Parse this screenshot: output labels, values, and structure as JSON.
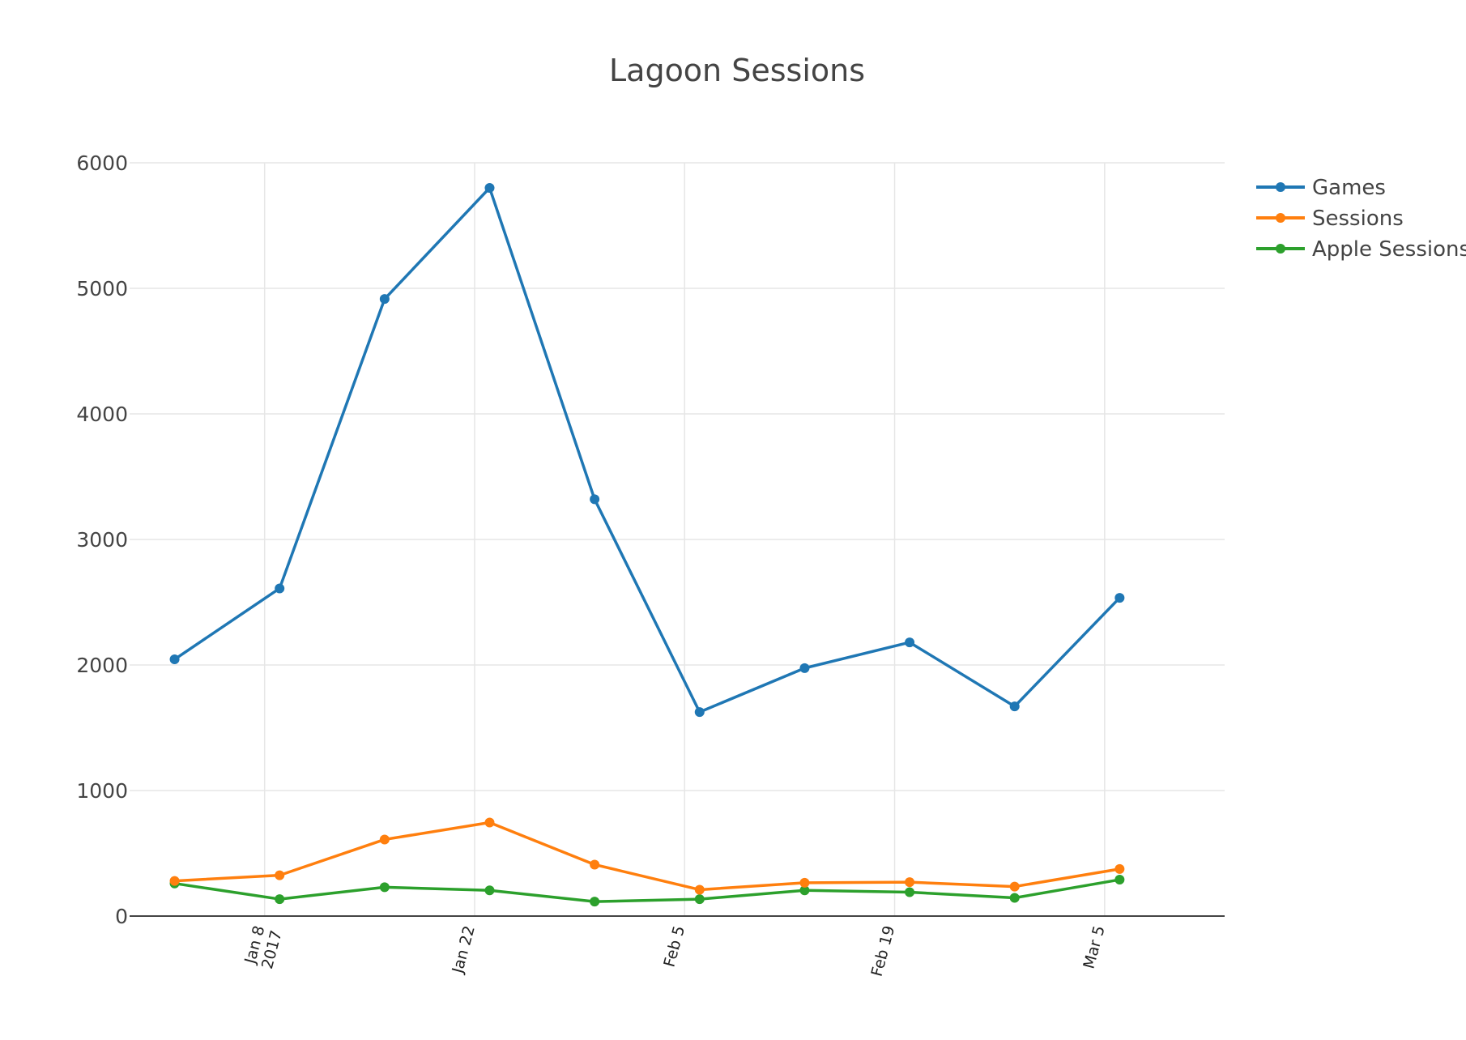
{
  "chart_data": {
    "type": "line",
    "title": "Lagoon Sessions",
    "xlabel": "",
    "ylabel": "",
    "ylim": [
      0,
      6000
    ],
    "yticks": [
      0,
      1000,
      2000,
      3000,
      4000,
      5000,
      6000
    ],
    "xlim": [
      "2016-12-30",
      "2017-03-13"
    ],
    "xticks": [
      {
        "date": "2017-01-08",
        "label": "Jan 8",
        "sublabel": "2017"
      },
      {
        "date": "2017-01-22",
        "label": "Jan 22",
        "sublabel": ""
      },
      {
        "date": "2017-02-05",
        "label": "Feb 5",
        "sublabel": ""
      },
      {
        "date": "2017-02-19",
        "label": "Feb 19",
        "sublabel": ""
      },
      {
        "date": "2017-03-05",
        "label": "Mar 5",
        "sublabel": ""
      }
    ],
    "grid": true,
    "legend_position": "top-right",
    "x": [
      "2017-01-02",
      "2017-01-09",
      "2017-01-16",
      "2017-01-23",
      "2017-01-30",
      "2017-02-06",
      "2017-02-13",
      "2017-02-20",
      "2017-02-27",
      "2017-03-06"
    ],
    "series": [
      {
        "name": "Games",
        "color": "#1f77b4",
        "values": [
          2045,
          2610,
          4915,
          5800,
          3320,
          1625,
          1975,
          2180,
          1670,
          2535
        ]
      },
      {
        "name": "Sessions",
        "color": "#ff7f0e",
        "values": [
          280,
          325,
          610,
          745,
          410,
          210,
          265,
          270,
          235,
          375
        ]
      },
      {
        "name": "Apple Sessions",
        "color": "#2ca02c",
        "values": [
          260,
          135,
          230,
          205,
          115,
          135,
          205,
          190,
          145,
          290
        ]
      }
    ]
  }
}
